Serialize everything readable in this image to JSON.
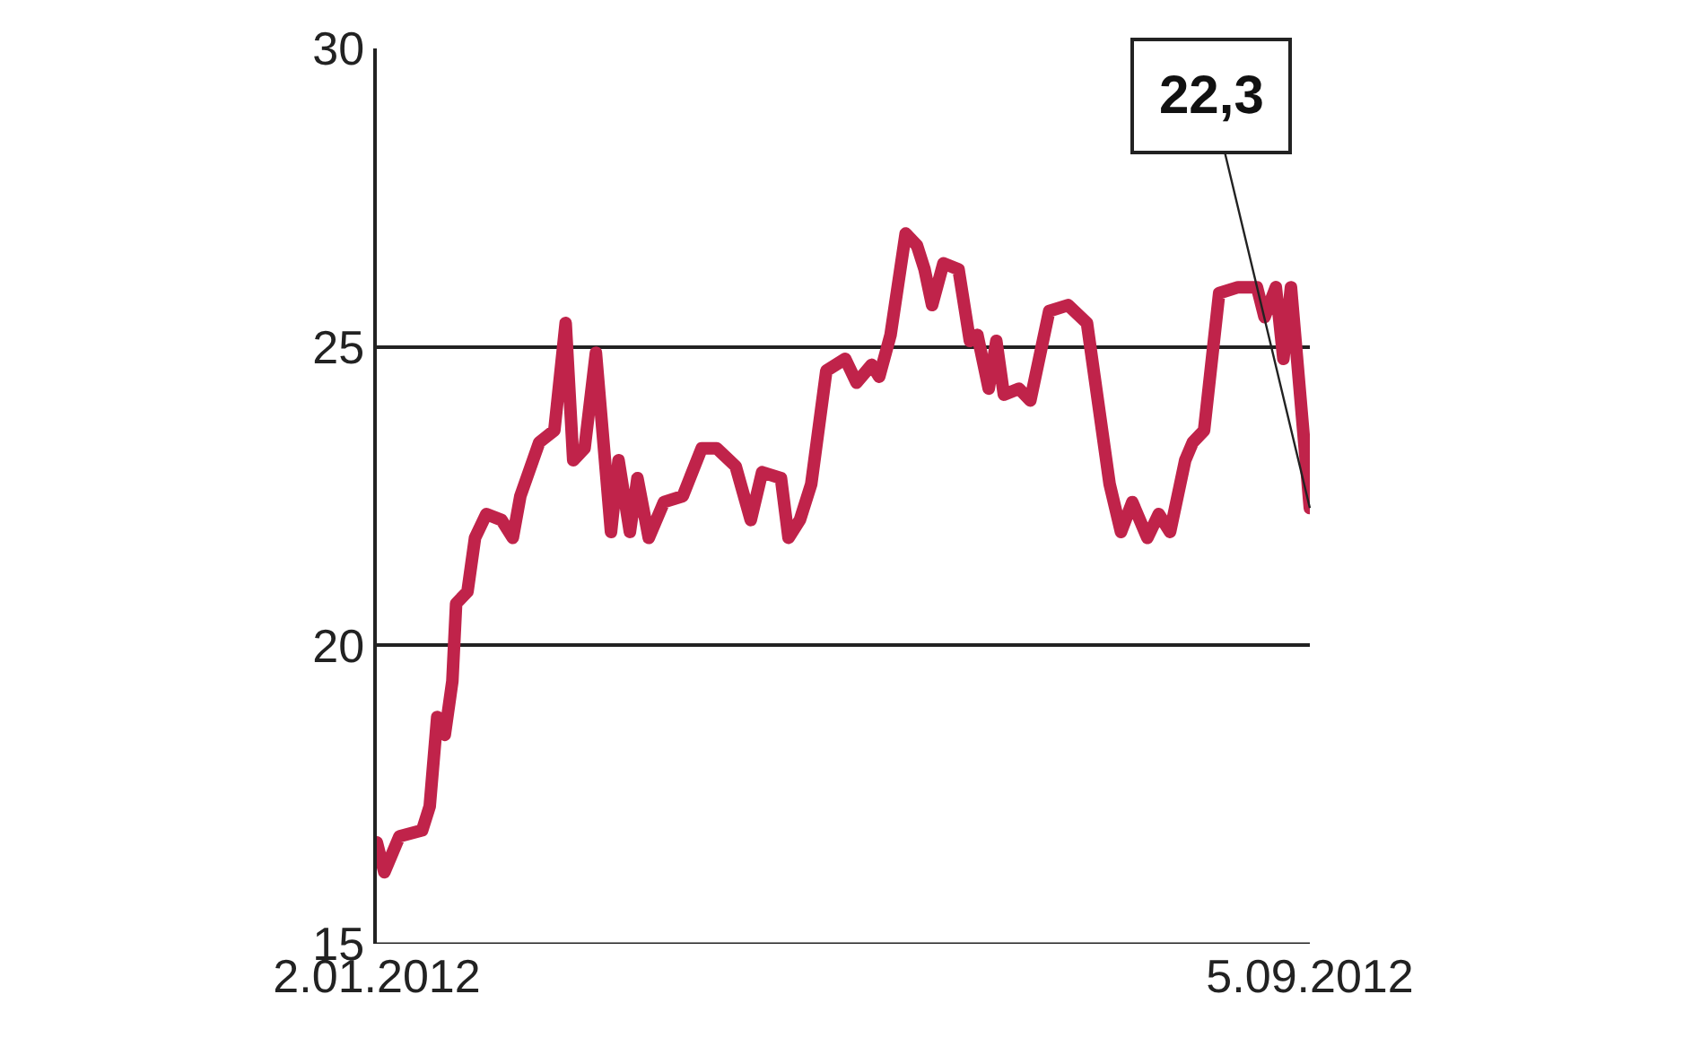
{
  "chart_data": {
    "type": "line",
    "x": [
      "2012-01-02",
      "2012-01-04",
      "2012-01-08",
      "2012-01-14",
      "2012-01-16",
      "2012-01-18",
      "2012-01-20",
      "2012-01-22",
      "2012-01-23",
      "2012-01-26",
      "2012-01-28",
      "2012-01-31",
      "2012-02-04",
      "2012-02-07",
      "2012-02-09",
      "2012-02-14",
      "2012-02-18",
      "2012-02-21",
      "2012-02-23",
      "2012-02-26",
      "2012-02-29",
      "2012-03-04",
      "2012-03-06",
      "2012-03-09",
      "2012-03-11",
      "2012-03-14",
      "2012-03-18",
      "2012-03-23",
      "2012-03-28",
      "2012-04-01",
      "2012-04-06",
      "2012-04-10",
      "2012-04-13",
      "2012-04-18",
      "2012-04-20",
      "2012-04-23",
      "2012-04-26",
      "2012-04-30",
      "2012-05-05",
      "2012-05-08",
      "2012-05-12",
      "2012-05-14",
      "2012-05-17",
      "2012-05-21",
      "2012-05-24",
      "2012-05-26",
      "2012-05-28",
      "2012-05-31",
      "2012-06-04",
      "2012-06-07",
      "2012-06-09",
      "2012-06-12",
      "2012-06-14",
      "2012-06-16",
      "2012-06-20",
      "2012-06-23",
      "2012-06-28",
      "2012-07-03",
      "2012-07-08",
      "2012-07-10",
      "2012-07-14",
      "2012-07-17",
      "2012-07-20",
      "2012-07-24",
      "2012-07-27",
      "2012-07-30",
      "2012-08-03",
      "2012-08-05",
      "2012-08-08",
      "2012-08-12",
      "2012-08-17",
      "2012-08-22",
      "2012-08-24",
      "2012-08-27",
      "2012-08-29",
      "2012-08-31",
      "2012-09-05"
    ],
    "series": [
      {
        "color": "#c0234a",
        "values": [
          16.7,
          16.2,
          16.8,
          16.9,
          17.3,
          18.8,
          18.5,
          19.4,
          20.7,
          20.9,
          21.8,
          22.2,
          22.1,
          21.8,
          22.5,
          23.4,
          23.6,
          25.4,
          23.1,
          23.3,
          24.9,
          21.9,
          23.1,
          21.9,
          22.8,
          21.8,
          22.4,
          22.5,
          23.3,
          23.3,
          23.0,
          22.1,
          22.9,
          22.8,
          21.8,
          22.1,
          22.7,
          24.6,
          24.8,
          24.4,
          24.7,
          24.5,
          25.2,
          26.9,
          26.7,
          26.3,
          25.7,
          26.4,
          26.3,
          25.1,
          25.2,
          24.3,
          25.1,
          24.2,
          24.3,
          24.1,
          25.6,
          25.7,
          25.4,
          24.5,
          22.7,
          21.9,
          22.4,
          21.8,
          22.2,
          21.9,
          23.1,
          23.4,
          23.6,
          25.9,
          26.0,
          26.0,
          25.5,
          26.0,
          24.8,
          26.0,
          22.3
        ]
      }
    ],
    "xlim": [
      "2012-01-02",
      "2012-09-05"
    ],
    "xticks": [
      {
        "value": "2012-01-02",
        "label": "2.01.2012"
      },
      {
        "value": "2012-09-05",
        "label": "5.09.2012"
      }
    ],
    "ylim": [
      15,
      30
    ],
    "yticks": [
      15,
      20,
      25,
      30
    ],
    "grid": "y",
    "marker": "none",
    "line_style": "solid",
    "annotations": [
      {
        "text": "22,3",
        "x": "2012-09-05",
        "y": 22.3
      }
    ]
  }
}
